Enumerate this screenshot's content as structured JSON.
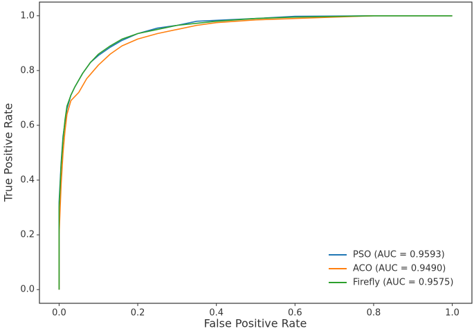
{
  "chart_data": {
    "type": "line",
    "xlabel": "False Positive Rate",
    "ylabel": "True Positive Rate",
    "xlim": [
      -0.05,
      1.05
    ],
    "ylim": [
      -0.05,
      1.05
    ],
    "xticks": [
      {
        "value": 0,
        "label": "0.0"
      },
      {
        "value": 0.2,
        "label": "0.2"
      },
      {
        "value": 0.4,
        "label": "0.4"
      },
      {
        "value": 0.6,
        "label": "0.6"
      },
      {
        "value": 0.8,
        "label": "0.8"
      },
      {
        "value": 1,
        "label": "1.0"
      }
    ],
    "yticks": [
      {
        "value": 0,
        "label": "0.0"
      },
      {
        "value": 0.2,
        "label": "0.2"
      },
      {
        "value": 0.4,
        "label": "0.4"
      },
      {
        "value": 0.6,
        "label": "0.6"
      },
      {
        "value": 0.8,
        "label": "0.8"
      },
      {
        "value": 1,
        "label": "1.0"
      }
    ],
    "grid": false,
    "legend": "lower right",
    "series": [
      {
        "name": "PSO (AUC = 0.9593)",
        "color": "#1f77b4",
        "x": [
          0,
          0,
          0.005,
          0.01,
          0.02,
          0.03,
          0.04,
          0.06,
          0.08,
          0.1,
          0.13,
          0.16,
          0.2,
          0.25,
          0.3,
          0.35,
          0.5,
          0.6,
          0.8,
          1
        ],
        "values": [
          0,
          0.32,
          0.46,
          0.56,
          0.66,
          0.71,
          0.74,
          0.79,
          0.83,
          0.855,
          0.885,
          0.91,
          0.935,
          0.955,
          0.965,
          0.98,
          0.99,
          0.998,
          1,
          1
        ]
      },
      {
        "name": "ACO (AUC = 0.9490)",
        "color": "#ff7f0e",
        "x": [
          0,
          0,
          0.005,
          0.01,
          0.015,
          0.02,
          0.03,
          0.05,
          0.07,
          0.1,
          0.13,
          0.16,
          0.2,
          0.25,
          0.3,
          0.35,
          0.4,
          0.5,
          0.6,
          0.7,
          0.8,
          0.88,
          1
        ],
        "values": [
          0,
          0.2,
          0.38,
          0.5,
          0.58,
          0.64,
          0.69,
          0.72,
          0.77,
          0.82,
          0.86,
          0.89,
          0.915,
          0.935,
          0.95,
          0.965,
          0.975,
          0.985,
          0.99,
          0.995,
          1,
          1,
          1
        ]
      },
      {
        "name": "Firefly (AUC = 0.9575)",
        "color": "#2ca02c",
        "x": [
          0,
          0,
          0.005,
          0.01,
          0.015,
          0.02,
          0.03,
          0.04,
          0.06,
          0.08,
          0.1,
          0.13,
          0.16,
          0.2,
          0.25,
          0.3,
          0.4,
          0.5,
          0.6,
          0.8,
          1
        ],
        "values": [
          0,
          0.3,
          0.45,
          0.55,
          0.62,
          0.67,
          0.71,
          0.74,
          0.79,
          0.83,
          0.86,
          0.89,
          0.915,
          0.935,
          0.95,
          0.965,
          0.98,
          0.99,
          0.995,
          1,
          1
        ]
      }
    ]
  }
}
